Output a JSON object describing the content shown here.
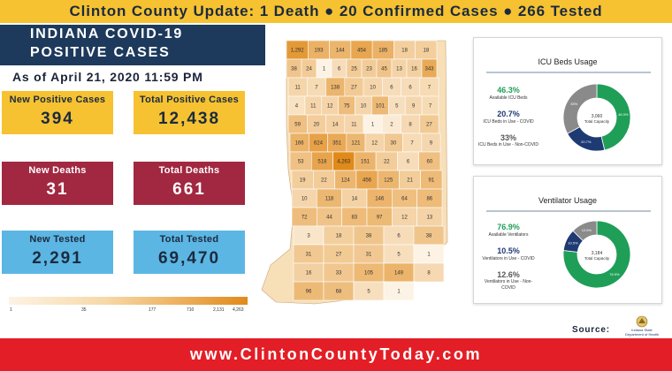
{
  "banner": {
    "headline": "Clinton County Update: 1 Death ● 20 Confirmed Cases ● 266 Tested"
  },
  "title": {
    "line1": "INDIANA COVID-19",
    "line2": "POSITIVE CASES"
  },
  "as_of": "As of April 21, 2020 11:59 PM",
  "stats": {
    "new_positive": {
      "label": "New Positive Cases",
      "value": "394"
    },
    "total_positive": {
      "label": "Total Positive Cases",
      "value": "12,438"
    },
    "new_deaths": {
      "label": "New Deaths",
      "value": "31"
    },
    "total_deaths": {
      "label": "Total Deaths",
      "value": "661"
    },
    "new_tested": {
      "label": "New Tested",
      "value": "2,291"
    },
    "total_tested": {
      "label": "Total Tested",
      "value": "69,470"
    }
  },
  "legend": {
    "ticks": [
      "1",
      "35",
      "177",
      "710",
      "2,131",
      "4,263"
    ]
  },
  "county_values": [
    "1,292",
    "193",
    "144",
    "454",
    "185",
    "18",
    "18",
    "38",
    "24",
    "1",
    "6",
    "25",
    "23",
    "45",
    "13",
    "16",
    "343",
    "11",
    "7",
    "138",
    "27",
    "10",
    "6",
    "6",
    "7",
    "4",
    "11",
    "12",
    "75",
    "10",
    "101",
    "5",
    "9",
    "7",
    "59",
    "20",
    "14",
    "11",
    "1",
    "2",
    "8",
    "27",
    "166",
    "624",
    "351",
    "121",
    "12",
    "30",
    "7",
    "9",
    "53",
    "518",
    "4,263",
    "151",
    "22",
    "6",
    "60",
    "19",
    "22",
    "124",
    "456",
    "125",
    "21",
    "91",
    "10",
    "118",
    "14",
    "146",
    "64",
    "86",
    "72",
    "44",
    "83",
    "97",
    "12",
    "13",
    "3",
    "18",
    "38",
    "6",
    "38",
    "31",
    "27",
    "31",
    "5",
    "1",
    "16",
    "33",
    "105",
    "149",
    "8",
    "96",
    "68",
    "5",
    "1"
  ],
  "icu": {
    "title": "ICU Beds Usage",
    "items": [
      {
        "pct": "46.3%",
        "label": "Available ICU Beds"
      },
      {
        "pct": "20.7%",
        "label": "ICU Beds in Use - COVID"
      },
      {
        "pct": "33%",
        "label": "ICU Beds in Use - Non-COVID"
      }
    ],
    "center_value": "3,060",
    "center_label": "Total Capacity",
    "slices": [
      46.3,
      20.7,
      33
    ],
    "slice_labels": [
      "46.3%",
      "20.7%",
      "33%"
    ],
    "colors": [
      "#1f9e57",
      "#1d3a73",
      "#8a8a8a"
    ]
  },
  "ventilator": {
    "title": "Ventilator Usage",
    "items": [
      {
        "pct": "76.9%",
        "label": "Available Ventilators"
      },
      {
        "pct": "10.5%",
        "label": "Ventilators in Use - COVID"
      },
      {
        "pct": "12.6%",
        "label": "Ventilators in Use - Non-COVID"
      }
    ],
    "center_value": "3,184",
    "center_label": "Total Capacity",
    "slices": [
      76.9,
      10.5,
      12.6
    ],
    "slice_labels": [
      "76.9%",
      "10.5%",
      "12.6%"
    ],
    "colors": [
      "#1f9e57",
      "#1d3a73",
      "#8a8a8a"
    ]
  },
  "source": {
    "label": "Source:",
    "seal_text": "Indiana State Department of Health"
  },
  "footer": {
    "url": "www.ClintonCountyToday.com"
  }
}
